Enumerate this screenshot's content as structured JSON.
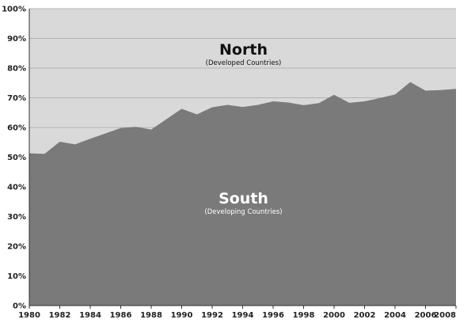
{
  "chart_data": {
    "type": "area",
    "x": [
      1980,
      1981,
      1982,
      1983,
      1984,
      1985,
      1986,
      1987,
      1988,
      1989,
      1990,
      1991,
      1992,
      1993,
      1994,
      1995,
      1996,
      1997,
      1998,
      1999,
      2000,
      2001,
      2002,
      2003,
      2004,
      2005,
      2006,
      2007,
      2008
    ],
    "series": [
      {
        "name": "South",
        "values": [
          51.3,
          51.1,
          55.2,
          54.3,
          56.2,
          58.0,
          59.8,
          60.2,
          59.3,
          62.8,
          66.3,
          64.4,
          66.8,
          67.6,
          66.9,
          67.6,
          68.8,
          68.4,
          67.5,
          68.2,
          71.0,
          68.3,
          68.8,
          69.9,
          71.1,
          75.3,
          72.4,
          72.6,
          73.0
        ]
      }
    ],
    "ylim": [
      0,
      100
    ],
    "xlim": [
      1980,
      2008
    ],
    "x_ticks": [
      "1980",
      "1982",
      "1984",
      "1986",
      "1988",
      "1990",
      "1992",
      "1994",
      "1996",
      "1998",
      "2000",
      "2002",
      "2004",
      "2006",
      "2008"
    ],
    "y_ticks": [
      "0%",
      "10%",
      "20%",
      "30%",
      "40%",
      "50%",
      "60%",
      "70%",
      "80%",
      "90%",
      "100%"
    ],
    "grid": true,
    "annotations": {
      "north_title": "North",
      "north_subtitle": "(Developed Countries)",
      "south_title": "South",
      "south_subtitle": "(Developing Countries)"
    },
    "colors": {
      "lower_area": "#7a7a7a",
      "upper_area": "#d9d9d9",
      "gridline": "#b3b3b3",
      "north_text": "#111111",
      "south_text": "#ffffff"
    }
  }
}
